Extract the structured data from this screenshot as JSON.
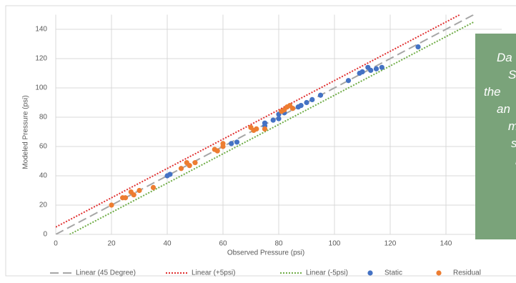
{
  "chart_data": {
    "type": "scatter",
    "x_label": "Observed Pressure (psi)",
    "y_label": "Modeled Pressure (psi)",
    "xlim": [
      0,
      160
    ],
    "ylim": [
      0,
      150
    ],
    "xticks": [
      0,
      20,
      40,
      60,
      80,
      100,
      120,
      140
    ],
    "yticks": [
      0,
      20,
      40,
      60,
      80,
      100,
      120,
      140
    ],
    "grid": true,
    "legend": "bottom",
    "series": [
      {
        "name": "Linear (45 Degree)",
        "color": "#a6a6a6",
        "mode": "line",
        "dash": "12 6",
        "x": [
          0,
          160
        ],
        "values": [
          0,
          160
        ]
      },
      {
        "name": "Linear (+5psi)",
        "color": "#e03030",
        "mode": "line",
        "dash": "2 2",
        "x": [
          0,
          145
        ],
        "values": [
          5,
          150
        ]
      },
      {
        "name": "Linear (-5psi)",
        "color": "#70ad47",
        "mode": "line",
        "dash": "2 2",
        "x": [
          5,
          150
        ],
        "values": [
          0,
          145
        ]
      },
      {
        "name": "Static",
        "color": "#4472c4",
        "mode": "marker",
        "x": [
          40,
          41,
          63,
          65,
          75,
          75,
          78,
          80,
          80,
          82,
          85,
          87,
          88,
          90,
          92,
          95,
          105,
          109,
          110,
          112,
          113,
          115,
          117,
          130
        ],
        "values": [
          40,
          41,
          62,
          63,
          74,
          76,
          78,
          79,
          82,
          83,
          86,
          87,
          88,
          90,
          92,
          95,
          105,
          110,
          111,
          114,
          112,
          113,
          114,
          128
        ]
      },
      {
        "name": "Residual",
        "color": "#ed7d31",
        "mode": "marker",
        "x": [
          20,
          24,
          25,
          27,
          28,
          30,
          35,
          45,
          47,
          48,
          50,
          57,
          58,
          60,
          60,
          70,
          71,
          72,
          75,
          81,
          82,
          83,
          84,
          85
        ],
        "values": [
          20,
          25,
          25,
          29,
          27,
          30,
          32,
          45,
          49,
          47,
          49,
          58,
          57,
          60,
          62,
          73,
          71,
          72,
          72,
          84,
          85,
          87,
          88,
          86
        ]
      }
    ]
  },
  "annotation": {
    "lines": [
      "Da",
      "S",
      "the",
      "an",
      "m",
      "s",
      "l"
    ]
  }
}
